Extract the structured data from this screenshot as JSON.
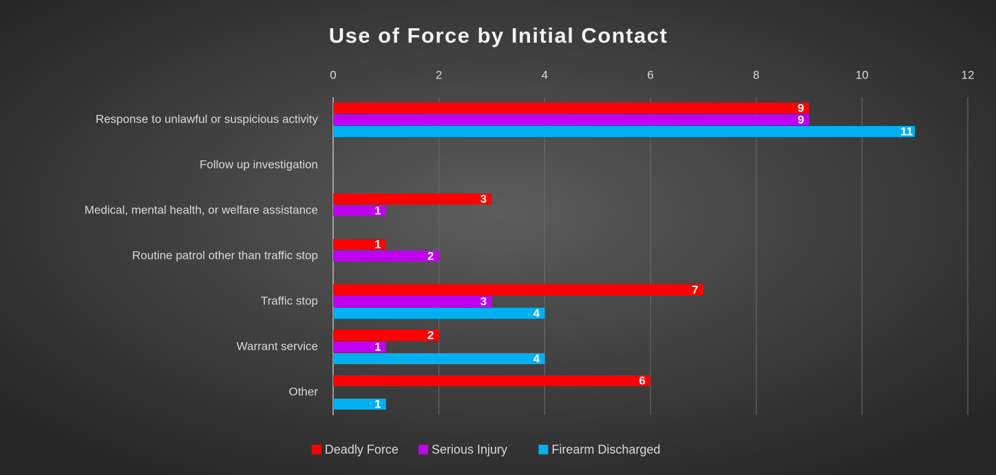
{
  "chart_data": {
    "type": "hbar",
    "title": "Use of Force by Initial Contact",
    "categories": [
      "Response to unlawful or suspicious activity",
      "Follow up investigation",
      "Medical, mental health, or welfare assistance",
      "Routine patrol other than traffic stop",
      "Traffic stop",
      "Warrant service",
      "Other"
    ],
    "series": [
      {
        "name": "Deadly Force",
        "color": "#ff0000",
        "values": [
          9,
          null,
          3,
          1,
          7,
          2,
          6
        ]
      },
      {
        "name": "Serious Injury",
        "color": "#c000f0",
        "values": [
          9,
          null,
          1,
          2,
          3,
          1,
          null
        ]
      },
      {
        "name": "Firearm Discharged",
        "color": "#00b0f0",
        "values": [
          11,
          null,
          null,
          null,
          4,
          4,
          1
        ]
      }
    ],
    "xlim": [
      0,
      12
    ],
    "xticks": [
      0,
      2,
      4,
      6,
      8,
      10,
      12
    ],
    "grid": true,
    "legend": "bottom"
  }
}
